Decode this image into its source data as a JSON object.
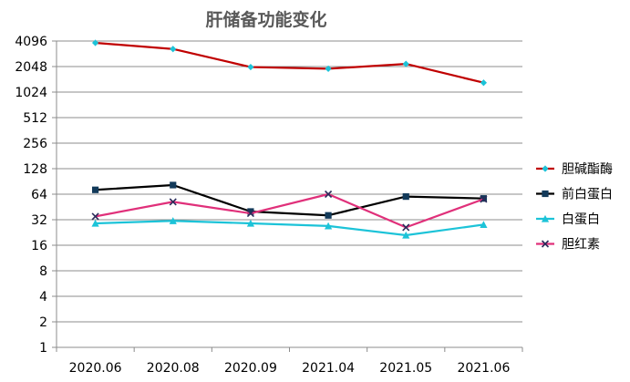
{
  "chart_data": {
    "type": "line",
    "title": "肝储备功能变化",
    "xlabel": "",
    "ylabel": "",
    "y_scale": "log2",
    "ylim": [
      1,
      4096
    ],
    "y_ticks": [
      "1",
      "2",
      "4",
      "8",
      "16",
      "32",
      "64",
      "128",
      "256",
      "512",
      "1024",
      "2048",
      "4096"
    ],
    "categories": [
      "2020.06",
      "2020.08",
      "2020.09",
      "2021.04",
      "2021.05",
      "2021.06"
    ],
    "grid": true,
    "legend_position": "right",
    "series": [
      {
        "name": "胆碱酯酶",
        "color": "#C00000",
        "marker_color": "#1CC3D8",
        "marker": "diamond",
        "values": [
          3900,
          3300,
          2020,
          1930,
          2200,
          1320
        ]
      },
      {
        "name": "前白蛋白",
        "color": "#000000",
        "marker_color": "#123A5A",
        "marker": "square",
        "values": [
          72,
          82,
          40,
          36,
          60,
          57
        ]
      },
      {
        "name": "白蛋白",
        "color": "#1CC3D8",
        "marker_color": "#1CC3D8",
        "marker": "triangle",
        "values": [
          29,
          31,
          29,
          27,
          21,
          28
        ]
      },
      {
        "name": "胆红素",
        "color": "#E0307A",
        "marker_color": "#2B2B5A",
        "marker": "x",
        "values": [
          35,
          52,
          38,
          64,
          26,
          56
        ]
      }
    ]
  }
}
